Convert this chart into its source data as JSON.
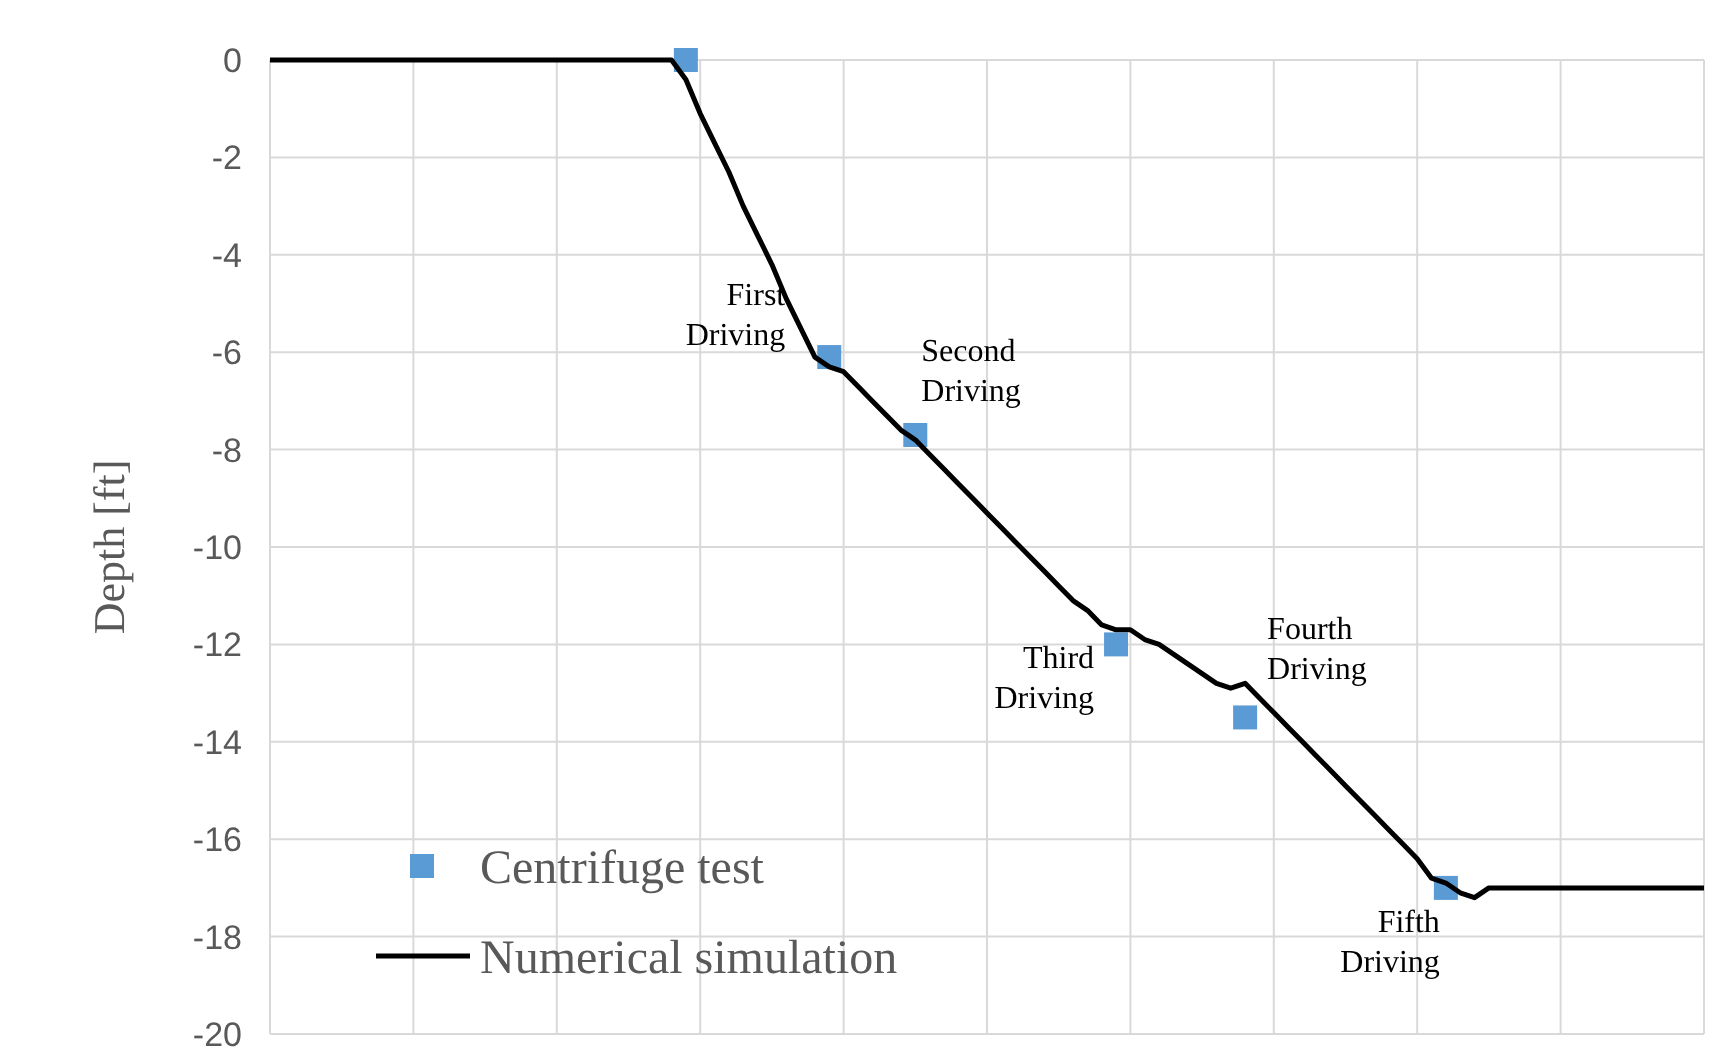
{
  "chart_data": {
    "type": "line",
    "ylabel": "Depth [ft]",
    "categories": [
      null,
      null,
      null,
      null,
      null,
      null,
      null,
      null,
      null,
      null,
      null,
      null,
      null,
      null,
      null,
      null,
      null,
      null,
      null,
      null,
      null,
      null,
      null,
      null,
      null,
      null,
      null,
      null,
      null,
      null,
      null,
      null,
      null,
      null,
      null,
      null,
      null,
      null,
      null,
      null,
      null,
      null,
      null,
      null,
      null,
      null,
      null,
      null,
      null,
      null,
      null,
      null,
      null,
      null,
      null,
      null,
      null,
      null,
      null,
      null,
      null,
      null,
      null,
      null,
      null,
      null,
      null,
      null,
      null,
      null,
      null,
      null,
      null,
      null,
      null,
      null,
      null,
      null,
      null,
      null,
      null,
      null,
      null,
      null,
      null,
      null,
      null,
      null,
      null,
      null,
      null,
      null,
      null,
      null,
      null,
      null,
      null,
      null,
      null,
      null,
      null
    ],
    "ylim": [
      -20,
      0
    ],
    "yticks": [
      -20,
      -18,
      -16,
      -14,
      -12,
      -10,
      -8,
      -6,
      -4,
      -2,
      0
    ],
    "grid": true,
    "legend": "bottom left",
    "series": [
      {
        "name": "Centrifuge test",
        "type": "scatter",
        "color": "#5b9bd5",
        "marker": "square",
        "values": [
          null,
          null,
          null,
          null,
          null,
          null,
          null,
          null,
          null,
          null,
          null,
          null,
          null,
          null,
          null,
          null,
          null,
          null,
          null,
          null,
          null,
          null,
          null,
          null,
          null,
          null,
          null,
          null,
          null,
          0,
          null,
          null,
          null,
          null,
          null,
          null,
          null,
          null,
          null,
          -6.1,
          null,
          null,
          null,
          null,
          null,
          -7.7,
          null,
          null,
          null,
          null,
          null,
          null,
          null,
          null,
          null,
          null,
          null,
          null,
          null,
          -12,
          null,
          null,
          null,
          null,
          null,
          null,
          null,
          null,
          -13.5,
          null,
          null,
          null,
          null,
          null,
          null,
          null,
          null,
          null,
          null,
          null,
          null,
          null,
          -17,
          null,
          null,
          null,
          null,
          null,
          null,
          null,
          null,
          null,
          null,
          null,
          null,
          null,
          null,
          null,
          null,
          null,
          null
        ]
      },
      {
        "name": "Numerical simulation",
        "color": "#000000",
        "marker": "none",
        "line_style": "solid",
        "values": [
          0,
          0,
          0,
          0,
          0,
          0,
          0,
          0,
          0,
          0,
          0,
          0,
          0,
          0,
          0,
          0,
          0,
          0,
          0,
          0,
          0,
          0,
          0,
          0,
          0,
          0,
          0,
          0,
          0,
          -0.4,
          -1.1,
          -1.7,
          -2.3,
          -3,
          -3.6,
          -4.2,
          -4.9,
          -5.5,
          -6.1,
          -6.3,
          -6.4,
          -6.7,
          -7,
          -7.3,
          -7.6,
          -7.8,
          -8.1,
          -8.4,
          -8.7,
          -9,
          -9.3,
          -9.6,
          -9.9,
          -10.2,
          -10.5,
          -10.8,
          -11.1,
          -11.3,
          -11.6,
          -11.7,
          -11.7,
          -11.9,
          -12,
          -12.2,
          -12.4,
          -12.6,
          -12.8,
          -12.9,
          -12.8,
          -13.1,
          -13.4,
          -13.7,
          -14,
          -14.3,
          -14.6,
          -14.9,
          -15.2,
          -15.5,
          -15.8,
          -16.1,
          -16.4,
          -16.8,
          -16.9,
          -17.1,
          -17.2,
          -17,
          -17,
          -17,
          -17,
          -17,
          -17,
          -17,
          -17,
          -17,
          -17,
          -17,
          -17,
          -17,
          -17,
          -17,
          -17
        ]
      }
    ],
    "annotations": [
      "First Driving",
      "Second Driving",
      "Third Driving",
      "Fourth Driving",
      "Fifth Driving"
    ]
  }
}
